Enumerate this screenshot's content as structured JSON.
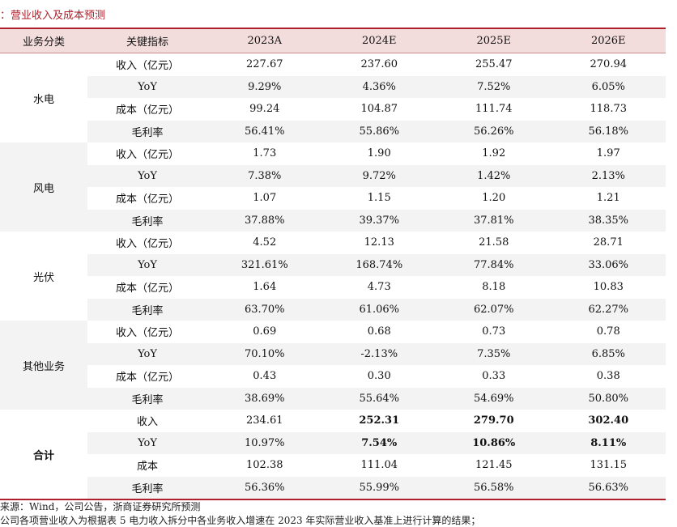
{
  "caption": "：营业收入及成本预测",
  "headers": [
    "业务分类",
    "关键指标",
    "2023A",
    "2024E",
    "2025E",
    "2026E"
  ],
  "groups": [
    {
      "name": "水电",
      "rows": [
        {
          "metric": "收入（亿元）",
          "values": [
            "227.67",
            "237.60",
            "255.47",
            "270.94"
          ]
        },
        {
          "metric": "YoY",
          "values": [
            "9.29%",
            "4.36%",
            "7.52%",
            "6.05%"
          ]
        },
        {
          "metric": "成本（亿元）",
          "values": [
            "99.24",
            "104.87",
            "111.74",
            "118.73"
          ]
        },
        {
          "metric": "毛利率",
          "values": [
            "56.41%",
            "55.86%",
            "56.26%",
            "56.18%"
          ]
        }
      ]
    },
    {
      "name": "风电",
      "rows": [
        {
          "metric": "收入（亿元）",
          "values": [
            "1.73",
            "1.90",
            "1.92",
            "1.97"
          ]
        },
        {
          "metric": "YoY",
          "values": [
            "7.38%",
            "9.72%",
            "1.42%",
            "2.13%"
          ]
        },
        {
          "metric": "成本（亿元）",
          "values": [
            "1.07",
            "1.15",
            "1.20",
            "1.21"
          ]
        },
        {
          "metric": "毛利率",
          "values": [
            "37.88%",
            "39.37%",
            "37.81%",
            "38.35%"
          ]
        }
      ]
    },
    {
      "name": "光伏",
      "rows": [
        {
          "metric": "收入（亿元）",
          "values": [
            "4.52",
            "12.13",
            "21.58",
            "28.71"
          ]
        },
        {
          "metric": "YoY",
          "values": [
            "321.61%",
            "168.74%",
            "77.84%",
            "33.06%"
          ]
        },
        {
          "metric": "成本（亿元）",
          "values": [
            "1.64",
            "4.73",
            "8.18",
            "10.83"
          ]
        },
        {
          "metric": "毛利率",
          "values": [
            "63.70%",
            "61.06%",
            "62.07%",
            "62.27%"
          ]
        }
      ]
    },
    {
      "name": "其他业务",
      "rows": [
        {
          "metric": "收入（亿元）",
          "values": [
            "0.69",
            "0.68",
            "0.73",
            "0.78"
          ]
        },
        {
          "metric": "YoY",
          "values": [
            "70.10%",
            "-2.13%",
            "7.35%",
            "6.85%"
          ]
        },
        {
          "metric": "成本（亿元）",
          "values": [
            "0.43",
            "0.30",
            "0.33",
            "0.38"
          ]
        },
        {
          "metric": "毛利率",
          "values": [
            "38.69%",
            "55.64%",
            "54.69%",
            "50.80%"
          ]
        }
      ]
    },
    {
      "name": "合计",
      "rows": [
        {
          "metric": "收入",
          "values": [
            "234.61",
            "252.31",
            "279.70",
            "302.40"
          ]
        },
        {
          "metric": "YoY",
          "values": [
            "10.97%",
            "7.54%",
            "10.86%",
            "8.11%"
          ]
        },
        {
          "metric": "成本",
          "values": [
            "102.38",
            "111.04",
            "121.45",
            "131.15"
          ]
        },
        {
          "metric": "毛利率",
          "values": [
            "56.36%",
            "55.99%",
            "56.58%",
            "56.63%"
          ]
        }
      ]
    }
  ],
  "notes": [
    "来源：Wind，公司公告，浙商证券研究所预测",
    "公司各项营业收入为根据表 5 电力收入拆分中各业务收入增速在 2023 年实际营业收入基准上进行计算的结果；"
  ]
}
